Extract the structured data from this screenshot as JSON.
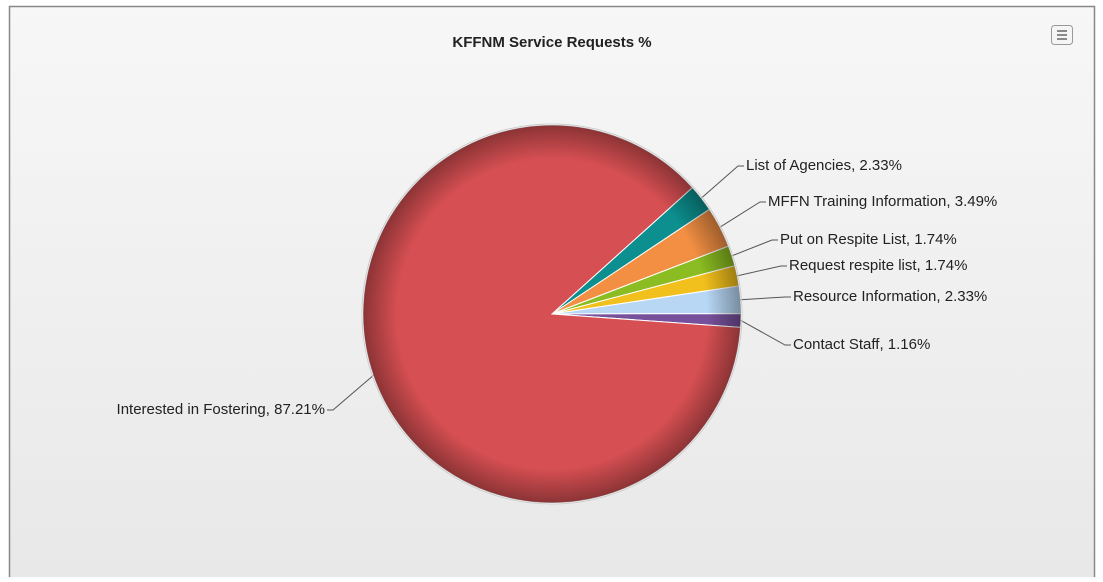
{
  "chart_data": {
    "type": "pie",
    "title": "KFFNM Service Requests %",
    "labels": [
      "List of Agencies, 2.33%",
      "MFFN Training Information, 3.49%",
      "Put on Respite List, 1.74%",
      "Request respite list, 1.74%",
      "Resource Information, 2.33%",
      "Contact Staff, 1.16%",
      "Interested in Fostering, 87.21%"
    ],
    "values": [
      2.33,
      3.49,
      1.74,
      1.74,
      2.33,
      1.16,
      87.21
    ],
    "colors": [
      "#0d8f8f",
      "#f28f43",
      "#8bbc21",
      "#f2c01c",
      "#b7d7f5",
      "#77509b",
      "#d64f52"
    ]
  }
}
